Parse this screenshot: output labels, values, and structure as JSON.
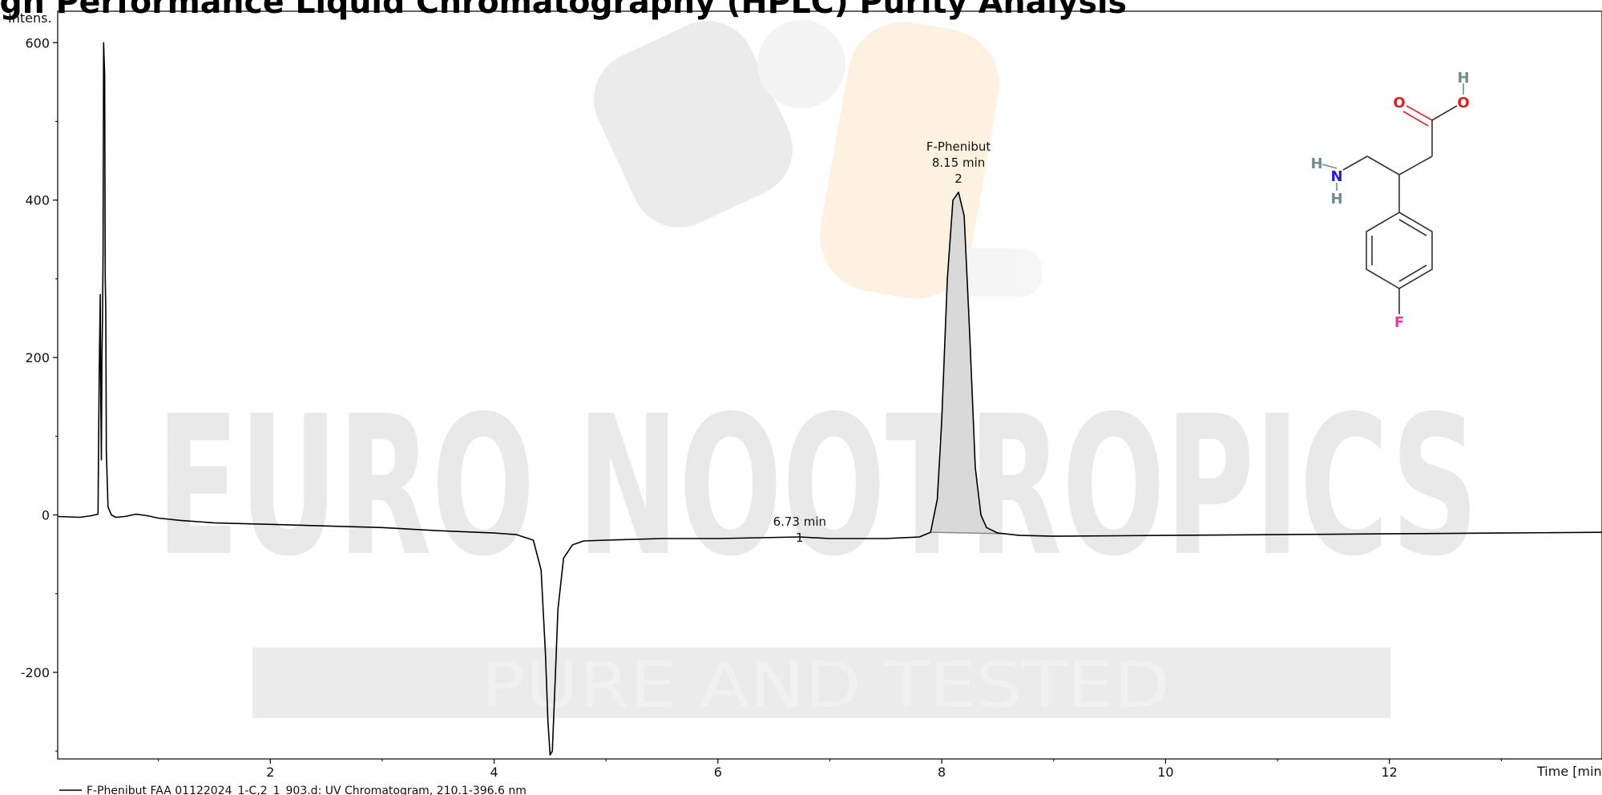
{
  "chart_data": {
    "type": "line",
    "title": "igh Performance Liquid Chromatography (HPLC) Purity Analysis",
    "ylabel": "Intens.",
    "xlabel": "Time [min]",
    "xlim": [
      0.1,
      13.9
    ],
    "ylim": [
      -310,
      640
    ],
    "x_ticks": [
      2,
      4,
      6,
      8,
      10,
      12
    ],
    "y_ticks": [
      -200,
      0,
      200,
      400,
      600
    ],
    "grid": false,
    "series": [
      {
        "name": "F-Phenibut FAA 01122024_1-C,2_1_903.d: UV Chromatogram, 210.1-396.6 nm",
        "color": "#000000",
        "points": [
          [
            0.1,
            -2
          ],
          [
            0.3,
            -3
          ],
          [
            0.4,
            -1
          ],
          [
            0.46,
            1
          ],
          [
            0.47,
            170
          ],
          [
            0.48,
            280
          ],
          [
            0.485,
            140
          ],
          [
            0.49,
            70
          ],
          [
            0.495,
            200
          ],
          [
            0.5,
            250
          ],
          [
            0.505,
            330
          ],
          [
            0.51,
            600
          ],
          [
            0.515,
            580
          ],
          [
            0.52,
            560
          ],
          [
            0.525,
            300
          ],
          [
            0.53,
            260
          ],
          [
            0.535,
            80
          ],
          [
            0.55,
            10
          ],
          [
            0.58,
            0
          ],
          [
            0.62,
            -3
          ],
          [
            0.7,
            -2
          ],
          [
            0.8,
            1
          ],
          [
            0.9,
            -1
          ],
          [
            1.0,
            -4
          ],
          [
            1.2,
            -7
          ],
          [
            1.5,
            -10
          ],
          [
            2.0,
            -12
          ],
          [
            2.5,
            -14
          ],
          [
            3.0,
            -16
          ],
          [
            3.5,
            -20
          ],
          [
            4.0,
            -23
          ],
          [
            4.2,
            -25
          ],
          [
            4.35,
            -32
          ],
          [
            4.42,
            -70
          ],
          [
            4.46,
            -180
          ],
          [
            4.48,
            -260
          ],
          [
            4.5,
            -305
          ],
          [
            4.52,
            -300
          ],
          [
            4.54,
            -230
          ],
          [
            4.57,
            -120
          ],
          [
            4.62,
            -55
          ],
          [
            4.7,
            -38
          ],
          [
            4.8,
            -33
          ],
          [
            5.0,
            -32
          ],
          [
            5.5,
            -30
          ],
          [
            6.0,
            -30
          ],
          [
            6.73,
            -28
          ],
          [
            7.0,
            -30
          ],
          [
            7.5,
            -30
          ],
          [
            7.8,
            -28
          ],
          [
            7.9,
            -22
          ],
          [
            7.96,
            20
          ],
          [
            8.0,
            120
          ],
          [
            8.05,
            300
          ],
          [
            8.1,
            400
          ],
          [
            8.15,
            410
          ],
          [
            8.2,
            380
          ],
          [
            8.25,
            230
          ],
          [
            8.3,
            60
          ],
          [
            8.35,
            0
          ],
          [
            8.4,
            -16
          ],
          [
            8.5,
            -23
          ],
          [
            8.7,
            -26
          ],
          [
            9.0,
            -27
          ],
          [
            10.0,
            -26
          ],
          [
            11.0,
            -25
          ],
          [
            12.0,
            -24
          ],
          [
            13.0,
            -23
          ],
          [
            13.9,
            -22
          ]
        ]
      }
    ],
    "annotations": [
      {
        "line1": "6.73 min",
        "line2": "1",
        "x": 6.73,
        "y": -28
      },
      {
        "line0": "F-Phenibut",
        "line1": "8.15 min",
        "line2": "2",
        "x": 8.15,
        "y": 410
      }
    ],
    "shaded_peak": {
      "x_start": 7.9,
      "x_end": 8.55
    },
    "molecule": {
      "atom_O1": "O",
      "atom_O2": "O",
      "atom_H_acid": "H",
      "atom_N": "N",
      "atom_H_n1": "H",
      "atom_H_n2": "H",
      "atom_F": "F"
    },
    "watermark": {
      "main": "EURO NOOTROPICS",
      "sub": "PURE AND TESTED"
    }
  }
}
